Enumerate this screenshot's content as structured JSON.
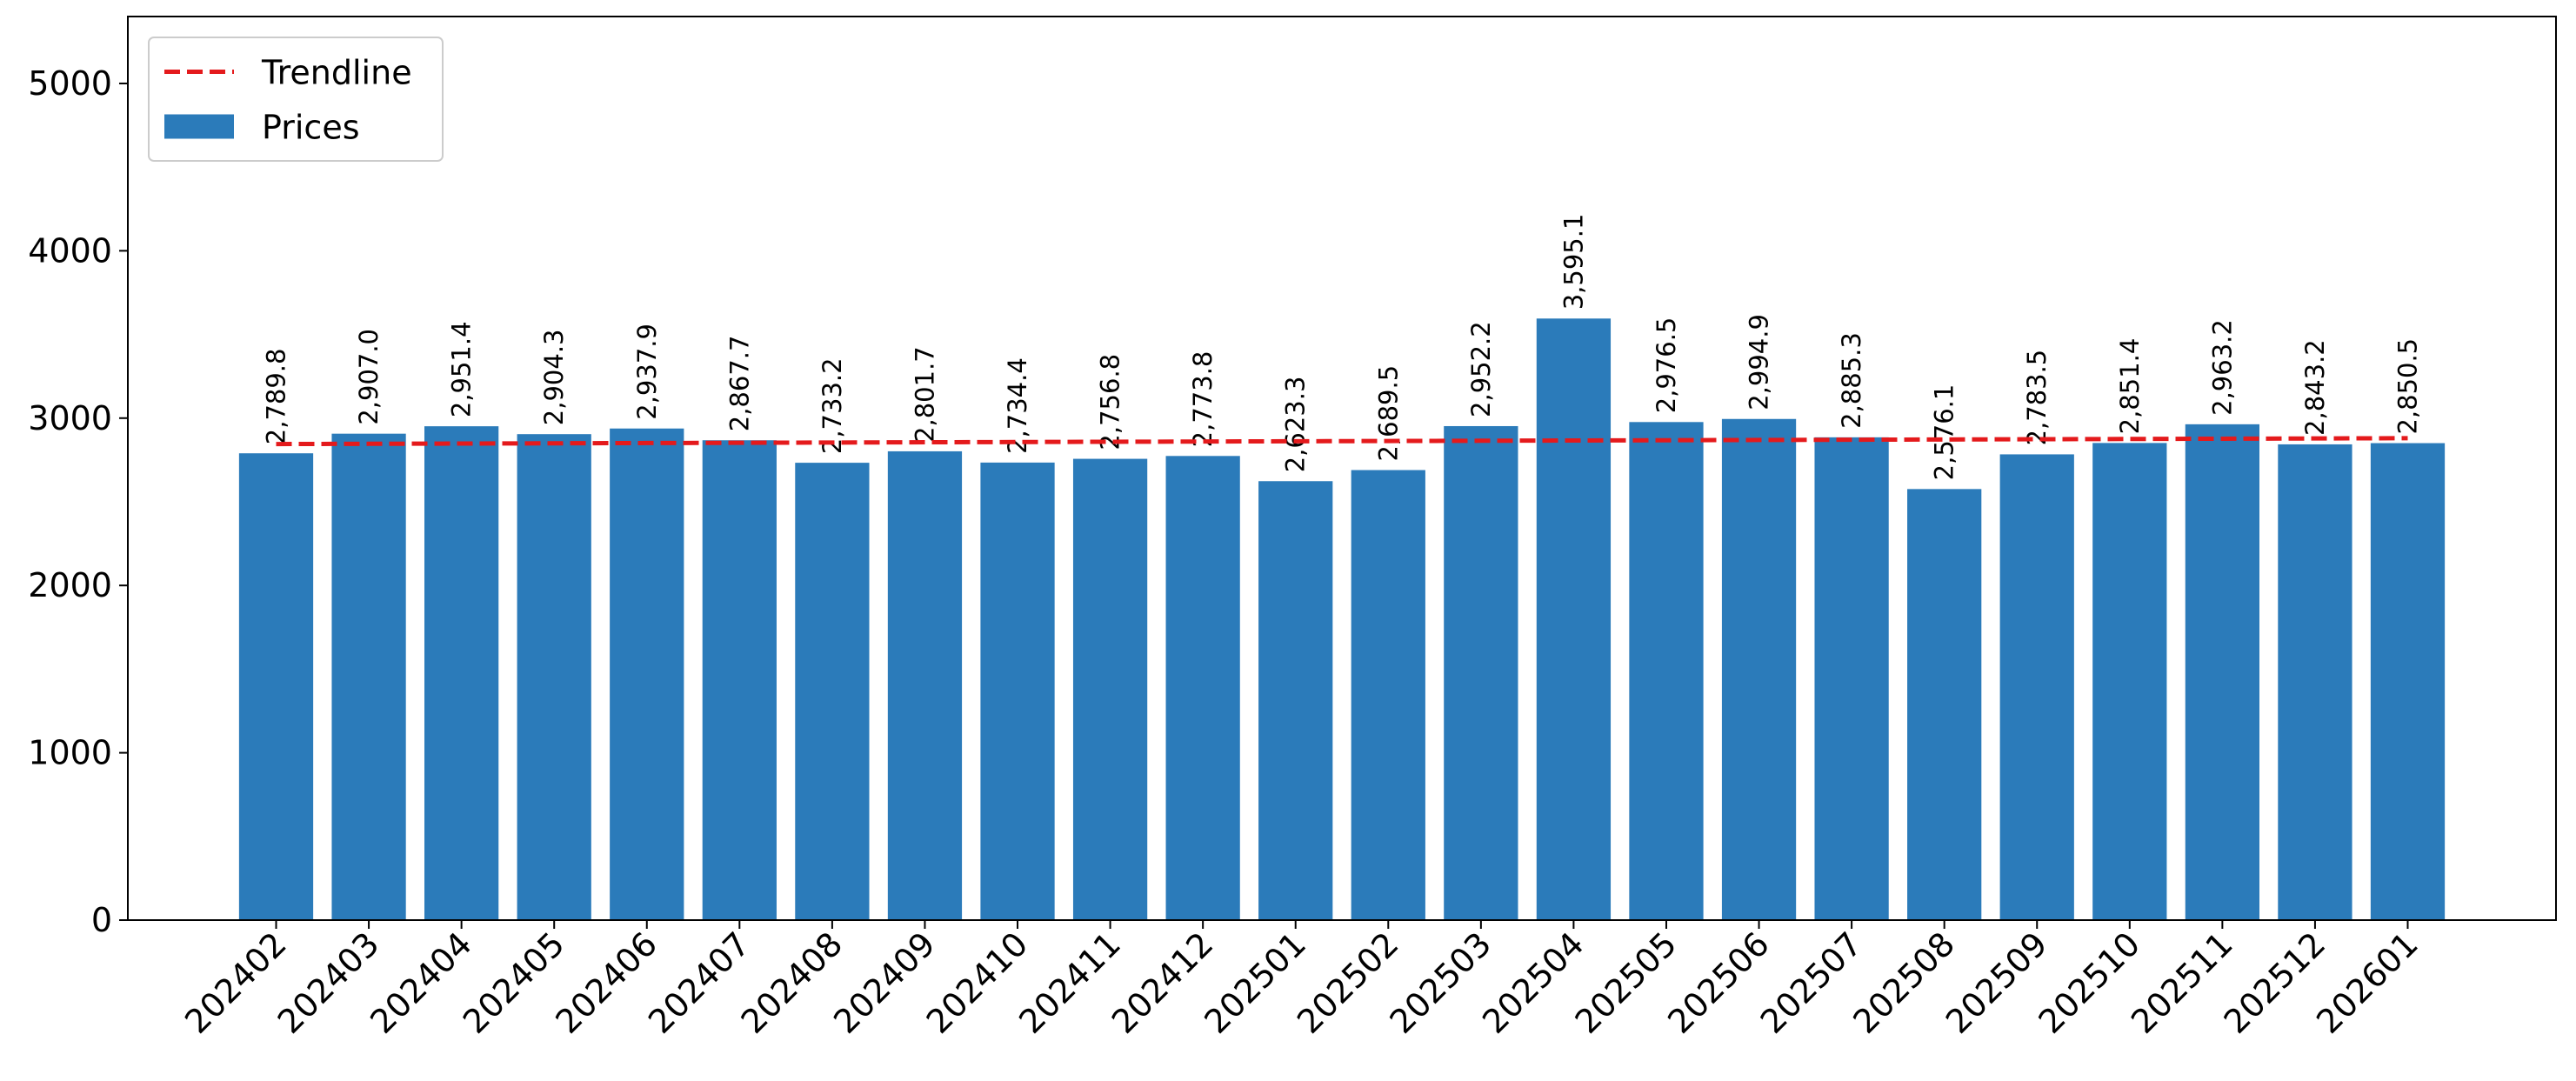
{
  "chart_data": {
    "type": "bar",
    "categories": [
      "202402",
      "202403",
      "202404",
      "202405",
      "202406",
      "202407",
      "202408",
      "202409",
      "202410",
      "202411",
      "202412",
      "202501",
      "202502",
      "202503",
      "202504",
      "202505",
      "202506",
      "202507",
      "202508",
      "202509",
      "202510",
      "202511",
      "202512",
      "202601"
    ],
    "series": [
      {
        "name": "Trendline",
        "type": "line",
        "dash": "dashed",
        "color": "#e41a1c",
        "values": [
          2845,
          2846.5,
          2848,
          2849.6,
          2851.1,
          2852.6,
          2854.1,
          2855.6,
          2857.2,
          2858.7,
          2860.2,
          2861.7,
          2863.2,
          2864.8,
          2866.3,
          2867.8,
          2869.3,
          2870.8,
          2872.4,
          2873.9,
          2875.4,
          2876.9,
          2878.4,
          2880
        ]
      },
      {
        "name": "Prices",
        "type": "bar",
        "color": "#2b7bba",
        "values": [
          2789.8,
          2907.0,
          2951.4,
          2904.3,
          2937.9,
          2867.7,
          2733.2,
          2801.7,
          2734.4,
          2756.8,
          2773.8,
          2623.3,
          2689.5,
          2952.2,
          3595.1,
          2976.5,
          2994.9,
          2885.3,
          2576.1,
          2783.5,
          2851.4,
          2963.2,
          2843.2,
          2850.5
        ],
        "value_labels": [
          "2,789.8",
          "2,907.0",
          "2,951.4",
          "2,904.3",
          "2,937.9",
          "2,867.7",
          "2,733.2",
          "2,801.7",
          "2,734.4",
          "2,756.8",
          "2,773.8",
          "2,623.3",
          "2,689.5",
          "2,952.2",
          "3,595.1",
          "2,976.5",
          "2,994.9",
          "2,885.3",
          "2,576.1",
          "2,783.5",
          "2,851.4",
          "2,963.2",
          "2,843.2",
          "2,850.5"
        ]
      }
    ],
    "ylim": [
      0,
      5400
    ],
    "yticks": [
      0,
      1000,
      2000,
      3000,
      4000,
      5000
    ],
    "legend": "upper left"
  }
}
